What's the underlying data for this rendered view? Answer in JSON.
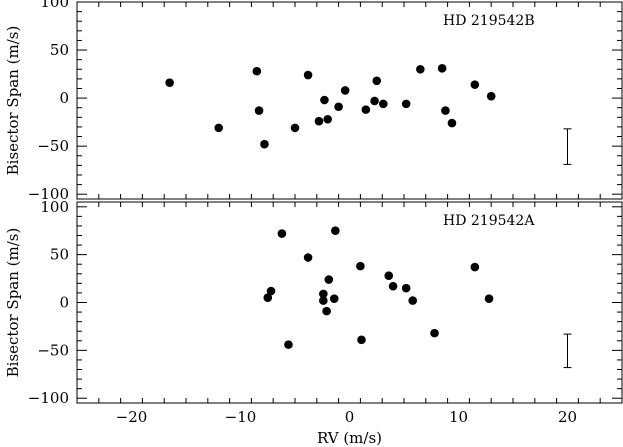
{
  "chart_data": [
    {
      "type": "scatter",
      "title": "HD 219542B",
      "xlabel": "",
      "ylabel": "Bisector Span (m/s)",
      "xlim": [
        -25,
        25
      ],
      "ylim": [
        -105,
        100
      ],
      "yticks": [
        100,
        50,
        0,
        -50,
        -100
      ],
      "xticks": [
        -20,
        -10,
        0,
        10,
        20
      ],
      "show_x_tick_labels": false,
      "grid": false,
      "error_bar": {
        "x": 20,
        "ylow": -69,
        "yhigh": -32
      },
      "x": [
        -16.5,
        -12,
        -8.5,
        -8.3,
        -7.8,
        -5,
        -3.8,
        -2.8,
        -2.3,
        -2,
        -1,
        -0.4,
        1.5,
        2.3,
        2.5,
        3.1,
        5.2,
        6.5,
        8.5,
        8.8,
        9.4,
        11.5,
        13
      ],
      "y": [
        16,
        -31,
        28,
        -13,
        -48,
        -31,
        24,
        -24,
        -2,
        -22,
        -9,
        8,
        -12,
        -3,
        18,
        -6,
        -6,
        30,
        31,
        -13,
        -26,
        14,
        2
      ]
    },
    {
      "type": "scatter",
      "title": "HD 219542A",
      "xlabel": "RV (m/s)",
      "ylabel": "Bisector Span (m/s)",
      "xlim": [
        -25,
        25
      ],
      "ylim": [
        -105,
        105
      ],
      "yticks": [
        100,
        50,
        0,
        -50,
        -100
      ],
      "xticks": [
        -20,
        -10,
        0,
        10,
        20
      ],
      "x_tick_labels": [
        "−20",
        "−10",
        "0",
        "10",
        "20"
      ],
      "show_x_tick_labels": true,
      "grid": false,
      "error_bar": {
        "x": 20,
        "ylow": -68,
        "yhigh": -33
      },
      "x": [
        -6.2,
        -5.6,
        -7.5,
        -7.2,
        -3.8,
        -2.4,
        -2.4,
        -2.1,
        -1.9,
        -1.4,
        -1.3,
        1,
        1.1,
        3.6,
        4,
        5.2,
        5.8,
        7.8,
        11.5,
        12.8
      ],
      "y": [
        72,
        -44,
        5,
        12,
        47,
        9,
        2,
        -9,
        24,
        4,
        75,
        38,
        -39,
        28,
        17,
        15,
        2,
        -32,
        37,
        4
      ]
    }
  ]
}
